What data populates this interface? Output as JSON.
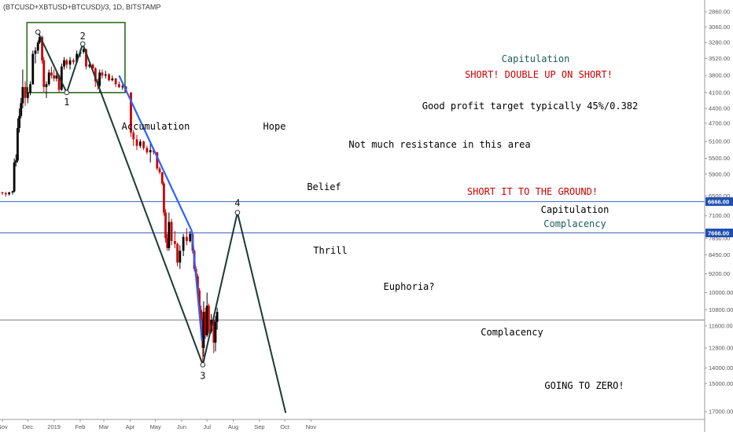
{
  "chart_data": {
    "type": "candlestick",
    "title": "(BTCUSD+XBTUSD+BTCUSD)/3, 1D, BITSTAMP",
    "y_scale": "log, inverted",
    "y_ticks": [
      "2860.00",
      "3060.00",
      "3280.00",
      "3520.00",
      "3800.00",
      "4100.00",
      "4400.00",
      "4700.00",
      "5100.00",
      "5500.00",
      "5900.00",
      "6500.00",
      "7100.00",
      "7850.00",
      "8450.00",
      "9200.00",
      "10000.00",
      "10800.00",
      "11600.00",
      "12800.00",
      "14000.00",
      "15000.00",
      "17000.00"
    ],
    "x_ticks": [
      "Nov",
      "Dec",
      "2019",
      "Feb",
      "Mar",
      "Apr",
      "May",
      "Jun",
      "Jul",
      "Aug",
      "Sep",
      "Oct",
      "Nov"
    ],
    "price_badges": [
      "6666.00",
      "7666.00"
    ],
    "annotations": [
      {
        "text": "Capitulation",
        "color": "#1a5c5c"
      },
      {
        "text": "SHORT! DOUBLE UP ON SHORT!",
        "color": "#cc0000"
      },
      {
        "text": "Good profit target typically 45%/0.382",
        "color": "#000000"
      },
      {
        "text": "Accumulation",
        "color": "#000000"
      },
      {
        "text": "Hope",
        "color": "#000000"
      },
      {
        "text": "Not much resistance in this area",
        "color": "#000000"
      },
      {
        "text": "Belief",
        "color": "#000000"
      },
      {
        "text": "SHORT IT TO THE GROUND!",
        "color": "#cc0000"
      },
      {
        "text": "Capitulation",
        "color": "#000000"
      },
      {
        "text": "Complacency",
        "color": "#1a5c5c"
      },
      {
        "text": "Thrill",
        "color": "#000000"
      },
      {
        "text": "Euphoria?",
        "color": "#000000"
      },
      {
        "text": "Complacency",
        "color": "#000000"
      },
      {
        "text": "GOING TO ZERO!",
        "color": "#000000"
      }
    ],
    "wave_labels": [
      "1",
      "2",
      "3",
      "4"
    ],
    "wave_points": [
      {
        "label": "1",
        "date": "2019-01-16",
        "price": 4100
      },
      {
        "label": "2",
        "date": "2019-02-04",
        "price": 3300
      },
      {
        "label": "3",
        "date": "2019-06-26",
        "price": 13800
      },
      {
        "label": "4",
        "date": "2019-08-06",
        "price": 7000
      }
    ],
    "accumulation_box": {
      "x_range": [
        "2018-11-30",
        "2019-03-26"
      ],
      "y_range": [
        3000,
        4100
      ]
    },
    "horizontal_lines": [
      6666,
      7666,
      11300
    ],
    "colors": {
      "up": "#000000",
      "down": "#cc0000",
      "trend": "#1a3a34",
      "blue": "#2962ff",
      "box": "#2e6b1f",
      "hline": "#1f4fb0"
    },
    "candles": [
      {
        "date": "2018-11-01",
        "open": 6400,
        "high": 6470,
        "low": 6380,
        "close": 6420
      },
      {
        "date": "2018-11-05",
        "open": 6420,
        "high": 6520,
        "low": 6380,
        "close": 6450
      },
      {
        "date": "2018-11-09",
        "open": 6450,
        "high": 6490,
        "low": 6380,
        "close": 6400
      },
      {
        "date": "2018-11-13",
        "open": 6400,
        "high": 6460,
        "low": 6350,
        "close": 6370
      },
      {
        "date": "2018-11-15",
        "open": 6370,
        "high": 6400,
        "low": 5500,
        "close": 5600
      },
      {
        "date": "2018-11-17",
        "open": 5600,
        "high": 5700,
        "low": 5400,
        "close": 5550
      },
      {
        "date": "2018-11-19",
        "open": 5550,
        "high": 5600,
        "low": 4600,
        "close": 4800
      },
      {
        "date": "2018-11-21",
        "open": 4800,
        "high": 4900,
        "low": 4400,
        "close": 4550
      },
      {
        "date": "2018-11-23",
        "open": 4550,
        "high": 4600,
        "low": 4200,
        "close": 4300
      },
      {
        "date": "2018-11-25",
        "open": 4300,
        "high": 4400,
        "low": 3700,
        "close": 4000
      },
      {
        "date": "2018-11-28",
        "open": 4000,
        "high": 4350,
        "low": 3900,
        "close": 4200
      },
      {
        "date": "2018-12-01",
        "open": 4200,
        "high": 4300,
        "low": 4000,
        "close": 4100
      },
      {
        "date": "2018-12-04",
        "open": 4100,
        "high": 4150,
        "low": 3900,
        "close": 3950
      },
      {
        "date": "2018-12-07",
        "open": 3950,
        "high": 3960,
        "low": 3400,
        "close": 3450
      },
      {
        "date": "2018-12-10",
        "open": 3450,
        "high": 3600,
        "low": 3350,
        "close": 3400
      },
      {
        "date": "2018-12-13",
        "open": 3400,
        "high": 3450,
        "low": 3250,
        "close": 3280
      },
      {
        "date": "2018-12-15",
        "open": 3280,
        "high": 3300,
        "low": 3130,
        "close": 3200
      },
      {
        "date": "2018-12-18",
        "open": 3200,
        "high": 3600,
        "low": 3180,
        "close": 3550
      },
      {
        "date": "2018-12-20",
        "open": 3550,
        "high": 4100,
        "low": 3500,
        "close": 4000
      },
      {
        "date": "2018-12-23",
        "open": 4000,
        "high": 4200,
        "low": 3900,
        "close": 3950
      },
      {
        "date": "2018-12-26",
        "open": 3950,
        "high": 3980,
        "low": 3700,
        "close": 3750
      },
      {
        "date": "2018-12-29",
        "open": 3750,
        "high": 3850,
        "low": 3650,
        "close": 3800
      },
      {
        "date": "2019-01-01",
        "open": 3800,
        "high": 3900,
        "low": 3700,
        "close": 3850
      },
      {
        "date": "2019-01-04",
        "open": 3850,
        "high": 3900,
        "low": 3750,
        "close": 3800
      },
      {
        "date": "2019-01-07",
        "open": 3800,
        "high": 4100,
        "low": 3780,
        "close": 4050
      },
      {
        "date": "2019-01-10",
        "open": 4050,
        "high": 4070,
        "low": 3600,
        "close": 3650
      },
      {
        "date": "2019-01-13",
        "open": 3650,
        "high": 3700,
        "low": 3500,
        "close": 3550
      },
      {
        "date": "2019-01-16",
        "open": 3550,
        "high": 3680,
        "low": 3530,
        "close": 3620
      },
      {
        "date": "2019-01-20",
        "open": 3620,
        "high": 3700,
        "low": 3500,
        "close": 3550
      },
      {
        "date": "2019-01-24",
        "open": 3550,
        "high": 3620,
        "low": 3520,
        "close": 3580
      },
      {
        "date": "2019-01-28",
        "open": 3580,
        "high": 3600,
        "low": 3400,
        "close": 3450
      },
      {
        "date": "2019-02-01",
        "open": 3450,
        "high": 3500,
        "low": 3380,
        "close": 3420
      },
      {
        "date": "2019-02-05",
        "open": 3420,
        "high": 3450,
        "low": 3350,
        "close": 3380
      },
      {
        "date": "2019-02-08",
        "open": 3380,
        "high": 3700,
        "low": 3370,
        "close": 3650
      },
      {
        "date": "2019-02-12",
        "open": 3650,
        "high": 3680,
        "low": 3580,
        "close": 3620
      },
      {
        "date": "2019-02-16",
        "open": 3620,
        "high": 3700,
        "low": 3600,
        "close": 3680
      },
      {
        "date": "2019-02-19",
        "open": 3680,
        "high": 4000,
        "low": 3660,
        "close": 3900
      },
      {
        "date": "2019-02-22",
        "open": 3900,
        "high": 4050,
        "low": 3850,
        "close": 3980
      },
      {
        "date": "2019-02-24",
        "open": 3980,
        "high": 4100,
        "low": 3700,
        "close": 3750
      },
      {
        "date": "2019-02-27",
        "open": 3750,
        "high": 3850,
        "low": 3700,
        "close": 3800
      },
      {
        "date": "2019-03-03",
        "open": 3800,
        "high": 3850,
        "low": 3720,
        "close": 3780
      },
      {
        "date": "2019-03-07",
        "open": 3780,
        "high": 3900,
        "low": 3760,
        "close": 3880
      },
      {
        "date": "2019-03-11",
        "open": 3880,
        "high": 3900,
        "low": 3800,
        "close": 3850
      },
      {
        "date": "2019-03-15",
        "open": 3850,
        "high": 4000,
        "low": 3840,
        "close": 3950
      },
      {
        "date": "2019-03-19",
        "open": 3950,
        "high": 4020,
        "low": 3900,
        "close": 4000
      },
      {
        "date": "2019-03-23",
        "open": 4000,
        "high": 4050,
        "low": 3950,
        "close": 3990
      },
      {
        "date": "2019-03-27",
        "open": 3990,
        "high": 4100,
        "low": 3980,
        "close": 4050
      },
      {
        "date": "2019-04-02",
        "open": 4100,
        "high": 5000,
        "low": 4090,
        "close": 4900
      },
      {
        "date": "2019-04-05",
        "open": 4900,
        "high": 5200,
        "low": 4850,
        "close": 5050
      },
      {
        "date": "2019-04-09",
        "open": 5050,
        "high": 5300,
        "low": 4950,
        "close": 5200
      },
      {
        "date": "2019-04-13",
        "open": 5200,
        "high": 5250,
        "low": 5050,
        "close": 5100
      },
      {
        "date": "2019-04-17",
        "open": 5100,
        "high": 5300,
        "low": 5080,
        "close": 5250
      },
      {
        "date": "2019-04-21",
        "open": 5250,
        "high": 5400,
        "low": 5200,
        "close": 5350
      },
      {
        "date": "2019-04-25",
        "open": 5350,
        "high": 5600,
        "low": 5100,
        "close": 5300
      },
      {
        "date": "2019-04-29",
        "open": 5300,
        "high": 5400,
        "low": 5250,
        "close": 5350
      },
      {
        "date": "2019-05-03",
        "open": 5350,
        "high": 5800,
        "low": 5340,
        "close": 5750
      },
      {
        "date": "2019-05-06",
        "open": 5750,
        "high": 5900,
        "low": 5700,
        "close": 5850
      },
      {
        "date": "2019-05-09",
        "open": 5850,
        "high": 6200,
        "low": 5840,
        "close": 6150
      },
      {
        "date": "2019-05-11",
        "open": 6150,
        "high": 7100,
        "low": 6100,
        "close": 7000
      },
      {
        "date": "2019-05-13",
        "open": 7000,
        "high": 8000,
        "low": 6900,
        "close": 7850
      },
      {
        "date": "2019-05-15",
        "open": 7850,
        "high": 8300,
        "low": 7700,
        "close": 8200
      },
      {
        "date": "2019-05-17",
        "open": 8200,
        "high": 8300,
        "low": 7000,
        "close": 7300
      },
      {
        "date": "2019-05-20",
        "open": 7300,
        "high": 8100,
        "low": 7200,
        "close": 7950
      },
      {
        "date": "2019-05-24",
        "open": 7950,
        "high": 8200,
        "low": 7600,
        "close": 8050
      },
      {
        "date": "2019-05-27",
        "open": 8050,
        "high": 8900,
        "low": 8000,
        "close": 8750
      },
      {
        "date": "2019-05-30",
        "open": 8750,
        "high": 9000,
        "low": 8100,
        "close": 8300
      },
      {
        "date": "2019-06-03",
        "open": 8300,
        "high": 8500,
        "low": 7700,
        "close": 7800
      },
      {
        "date": "2019-06-07",
        "open": 7800,
        "high": 8100,
        "low": 7500,
        "close": 7950
      },
      {
        "date": "2019-06-11",
        "open": 7950,
        "high": 8000,
        "low": 7600,
        "close": 7700
      },
      {
        "date": "2019-06-14",
        "open": 7700,
        "high": 8400,
        "low": 7650,
        "close": 8300
      },
      {
        "date": "2019-06-16",
        "open": 8300,
        "high": 9100,
        "low": 8250,
        "close": 9000
      },
      {
        "date": "2019-06-18",
        "open": 9000,
        "high": 9400,
        "low": 8900,
        "close": 9300
      },
      {
        "date": "2019-06-20",
        "open": 9300,
        "high": 10000,
        "low": 9200,
        "close": 9900
      },
      {
        "date": "2019-06-22",
        "open": 9900,
        "high": 11200,
        "low": 9800,
        "close": 10800
      },
      {
        "date": "2019-06-24",
        "open": 10800,
        "high": 11800,
        "low": 10600,
        "close": 11300
      },
      {
        "date": "2019-06-26",
        "open": 11300,
        "high": 13800,
        "low": 11200,
        "close": 12800
      },
      {
        "date": "2019-06-27",
        "open": 12800,
        "high": 13300,
        "low": 10400,
        "close": 10900
      },
      {
        "date": "2019-06-29",
        "open": 10900,
        "high": 12300,
        "low": 10700,
        "close": 12100
      },
      {
        "date": "2019-07-01",
        "open": 12100,
        "high": 12200,
        "low": 10000,
        "close": 10600
      },
      {
        "date": "2019-07-03",
        "open": 10600,
        "high": 12000,
        "low": 10500,
        "close": 11900
      },
      {
        "date": "2019-07-06",
        "open": 11900,
        "high": 12000,
        "low": 11000,
        "close": 11300
      },
      {
        "date": "2019-07-09",
        "open": 11300,
        "high": 13100,
        "low": 11200,
        "close": 12500
      },
      {
        "date": "2019-07-11",
        "open": 12500,
        "high": 13000,
        "low": 11100,
        "close": 11400
      },
      {
        "date": "2019-07-13",
        "open": 11400,
        "high": 11800,
        "low": 10700,
        "close": 10900
      }
    ]
  }
}
